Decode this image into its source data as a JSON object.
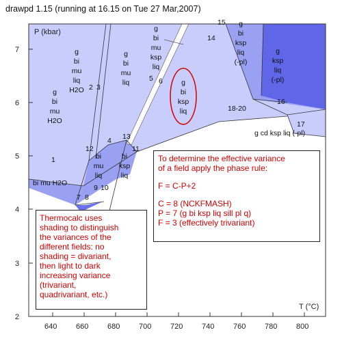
{
  "header": "drawpd 1.15 (running at 16.15 on Tue 27 Mar,2007)",
  "axes": {
    "y_label": "P (kbar)",
    "x_label": "T (°C)",
    "x_ticks": [
      "640",
      "660",
      "680",
      "700",
      "720",
      "740",
      "760",
      "780",
      "800"
    ],
    "y_ticks": [
      "2",
      "3",
      "4",
      "5",
      "6",
      "7"
    ]
  },
  "colors": {
    "divariant": "#ffffff",
    "trivariant": "#c9cdfb",
    "quadrivariant": "#9aa0f2",
    "higher": "#5f66e8",
    "annotation": "#d40000"
  },
  "fields": {
    "g_bi_mu_h2o": [
      "g",
      "bi",
      "mu",
      "H2O"
    ],
    "g_bi_mu_liq_h2o": [
      "g",
      "bi",
      "mu",
      "liq",
      "H2O"
    ],
    "g_bi_mu_liq": [
      "g",
      "bi",
      "mu",
      "liq"
    ],
    "g_bi_mu_ksp_liq": [
      "g",
      "bi",
      "mu",
      "ksp",
      "liq"
    ],
    "g_bi_ksp_liq": [
      "g",
      "bi",
      "ksp",
      "liq"
    ],
    "g_bi_ksp_liq_pl": [
      "g",
      "bi",
      "ksp",
      "liq",
      "(-pl)"
    ],
    "g_ksp_liq_pl": [
      "g",
      "ksp",
      "liq",
      "(-pl)"
    ],
    "bi_mu_liq": [
      "bi",
      "mu",
      "liq"
    ],
    "bi_ksp_liq": [
      "bi",
      "ksp",
      "liq"
    ],
    "bi_mu_h2o": "bi mu H2O",
    "g_cd_ksp_liq_pl": "g cd ksp liq (-pl)"
  },
  "reactions": {
    "r1": "1",
    "r2": "2",
    "r3": "3",
    "r4": "4",
    "r5": "5",
    "r6": "6",
    "r7": "7",
    "r8": "8",
    "r9": "9",
    "r10": "10",
    "r11": "11",
    "r12": "12",
    "r13": "13",
    "r14": "14",
    "r15": "15",
    "r16": "16",
    "r17": "17",
    "r18_20": "18-20"
  },
  "annotation_right": {
    "line1": "To determine the effective variance",
    "line2": "of a field apply the phase rule:",
    "formula": "F = C-P+2",
    "c_line": "C = 8 (NCKFMASH)",
    "p_line": "P = 7 (g bi ksp liq sill pl q)",
    "f_line": "F = 3 (effectively trivariant)"
  },
  "annotation_left": {
    "lines": [
      "Thermocalc uses",
      "shading to distinguish",
      "the variances of the",
      "different fields: no",
      "shading = divariant,",
      "then light to dark",
      "increasing variance",
      "(trivariant,",
      "quadrivariant, etc.)"
    ]
  }
}
